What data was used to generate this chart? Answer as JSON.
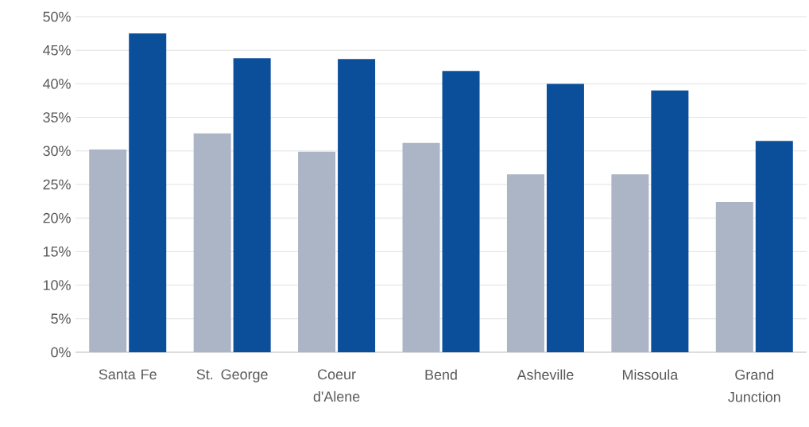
{
  "chart_data": {
    "type": "bar",
    "categories": [
      "Santa Fe",
      "St. George",
      "Coeur d'Alene",
      "Bend",
      "Asheville",
      "Missoula",
      "Grand Junction"
    ],
    "series": [
      {
        "color": "#abb5c6",
        "values": [
          30.2,
          32.6,
          29.9,
          31.2,
          26.5,
          26.5,
          22.4
        ]
      },
      {
        "color": "#0b4f9b",
        "values": [
          47.5,
          43.8,
          43.7,
          41.9,
          40.0,
          39.0,
          31.5
        ]
      }
    ],
    "ylim": [
      0,
      50
    ],
    "yticks": [
      {
        "value": 0,
        "label": "0%"
      },
      {
        "value": 5,
        "label": "5%"
      },
      {
        "value": 10,
        "label": "10%"
      },
      {
        "value": 15,
        "label": "15%"
      },
      {
        "value": 20,
        "label": "20%"
      },
      {
        "value": 25,
        "label": "25%"
      },
      {
        "value": 30,
        "label": "30%"
      },
      {
        "value": 35,
        "label": "35%"
      },
      {
        "value": 40,
        "label": "40%"
      },
      {
        "value": 45,
        "label": "45%"
      },
      {
        "value": 50,
        "label": "50%"
      }
    ],
    "grid": "y"
  }
}
